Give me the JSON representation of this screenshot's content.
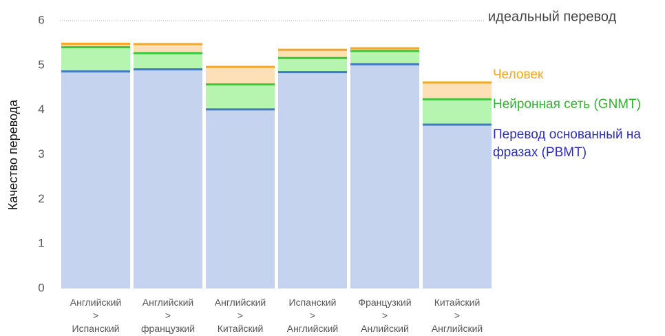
{
  "chart_data": {
    "type": "bar",
    "mode": "overlap",
    "y_label": "Качество перевода",
    "categories": [
      [
        "Английский",
        ">",
        "Испанский"
      ],
      [
        "Английский",
        ">",
        "французкий"
      ],
      [
        "Английский",
        ">",
        "Китайский"
      ],
      [
        "Испанский",
        ">",
        "Английский"
      ],
      [
        "Французкий",
        ">",
        "Анлийский"
      ],
      [
        "Китайский",
        ">",
        "Английский"
      ]
    ],
    "series": [
      {
        "name": "Человек",
        "color": "#fde0b5",
        "line_color": "#f5a623",
        "text_color": "#f5a623",
        "values": [
          5.504,
          5.496,
          4.987,
          5.372,
          5.404,
          4.636
        ]
      },
      {
        "name": "Нейронная сеть (GNMT)",
        "color": "#b5f5b0",
        "line_color": "#3ac83a",
        "text_color": "#2fb52f",
        "values": [
          5.428,
          5.295,
          4.594,
          5.187,
          5.343,
          4.263
        ]
      },
      {
        "name": "Перевод основанный на фразах (PBMT)",
        "color": "#c5d3ef",
        "line_color": "#3e7bbf",
        "text_color": "#2b2bc0",
        "values": [
          4.885,
          4.932,
          4.035,
          4.872,
          5.046,
          3.694
        ]
      }
    ],
    "ideal": {
      "label": "идеальный перевод",
      "value": 6
    },
    "ylim": [
      0,
      6
    ],
    "yticks": [
      0,
      1,
      2,
      3,
      4,
      5,
      6
    ],
    "grid": false
  }
}
